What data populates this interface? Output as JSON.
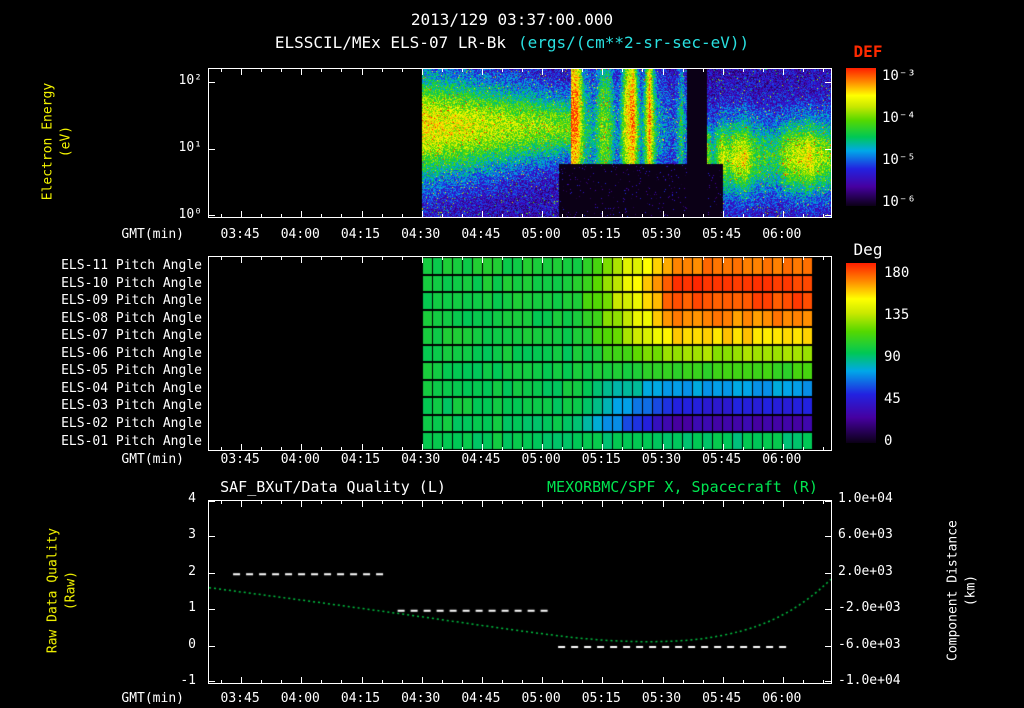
{
  "header": {
    "timestamp": "2013/129 03:37:00.000",
    "instrument": "ELSSCIL/MEx ELS-07 LR-Bk",
    "units": "(ergs/(cm**2-sr-sec-eV))"
  },
  "colors": {
    "background": "#000000",
    "text": "#ffffff",
    "units_text": "#29e0e0",
    "yellow_label": "#f5f500",
    "def_label": "#ff2a00",
    "green_title": "#00e550",
    "green_series": "#00c040",
    "palette": [
      [
        0,
        "#0b0016"
      ],
      [
        0.14,
        "#4600a0"
      ],
      [
        0.27,
        "#2222e0"
      ],
      [
        0.4,
        "#00a8e8"
      ],
      [
        0.5,
        "#00c855"
      ],
      [
        0.62,
        "#55d800"
      ],
      [
        0.72,
        "#c8e800"
      ],
      [
        0.8,
        "#ffff00"
      ],
      [
        0.9,
        "#ff8800"
      ],
      [
        1,
        "#ff1e00"
      ]
    ]
  },
  "time_axis": {
    "label": "GMT(min)",
    "start_min": 217,
    "end_min": 372,
    "tick_labels": [
      "03:45",
      "04:00",
      "04:15",
      "04:30",
      "04:45",
      "05:00",
      "05:15",
      "05:30",
      "05:45",
      "06:00"
    ],
    "tick_minutes": [
      225,
      240,
      255,
      270,
      285,
      300,
      315,
      330,
      345,
      360
    ]
  },
  "chart_data": {
    "spectrogram": {
      "type": "heatmap",
      "ylabel_line1": "Electron Energy",
      "ylabel_line2": "(eV)",
      "ytick_labels": [
        "10²",
        "10¹",
        "10⁰"
      ],
      "ytick_exponents": [
        2,
        1,
        0
      ],
      "log_energy_range": [
        0,
        2.2
      ],
      "value_range_exponents": [
        -6.3,
        -3.2
      ],
      "data_start_min": 270,
      "data_end_min": 372,
      "colorbar": {
        "title": "DEF",
        "tick_labels": [
          "10⁻³",
          "10⁻⁴",
          "10⁻⁵",
          "10⁻⁶"
        ]
      },
      "features": {
        "background_level": -6.15,
        "noise_amp": 0.85,
        "main_band": {
          "t0": 270,
          "t1": 307,
          "center_log": 1.35,
          "amp0": 1.9,
          "amp1": 1.35
        },
        "patchy_band": {
          "t0": 307,
          "t1": 336,
          "center_log": 1.3,
          "sigma": 0.5,
          "amp": 1.55
        },
        "gap": {
          "t0": 336,
          "t1": 341
        },
        "late_band": {
          "t0": 341,
          "t1": 372,
          "center_log": 0.9,
          "sigma": 0.4,
          "amp": 1.55
        },
        "dark_low": {
          "t0": 304,
          "t1": 345,
          "below_log": 0.8
        }
      }
    },
    "pitch_angles": {
      "type": "heatmap",
      "deg_range": [
        0,
        180
      ],
      "data_start_min": 270,
      "data_end_min": 367,
      "transition_start_min": 308,
      "transition_end_min": 333,
      "colorbar": {
        "title": "Deg",
        "tick_labels": [
          "180",
          "135",
          "90",
          "45",
          "0"
        ]
      },
      "rows": [
        {
          "label": "ELS-11 Pitch Angle",
          "start_deg": 96,
          "end_deg": 165
        },
        {
          "label": "ELS-10 Pitch Angle",
          "start_deg": 95,
          "end_deg": 176
        },
        {
          "label": "ELS-09 Pitch Angle",
          "start_deg": 95,
          "end_deg": 172
        },
        {
          "label": "ELS-08 Pitch Angle",
          "start_deg": 94,
          "end_deg": 162
        },
        {
          "label": "ELS-07 Pitch Angle",
          "start_deg": 94,
          "end_deg": 150
        },
        {
          "label": "ELS-06 Pitch Angle",
          "start_deg": 93,
          "end_deg": 122
        },
        {
          "label": "ELS-05 Pitch Angle",
          "start_deg": 93,
          "end_deg": 104
        },
        {
          "label": "ELS-04 Pitch Angle",
          "start_deg": 92,
          "end_deg": 70
        },
        {
          "label": "ELS-03 Pitch Angle",
          "start_deg": 92,
          "end_deg": 45
        },
        {
          "label": "ELS-02 Pitch Angle",
          "start_deg": 91,
          "end_deg": 28
        },
        {
          "label": "ELS-01 Pitch Angle",
          "start_deg": 91,
          "end_deg": 88
        }
      ]
    },
    "timeseries": {
      "type": "line",
      "left_title": "SAF_BXuT/Data Quality (L)",
      "right_title": "MEXORBMC/SPF X, Spacecraft (R)",
      "left_ylabel_line1": "Raw Data Quality",
      "left_ylabel_line2": "(Raw)",
      "right_ylabel_line1": "Component Distance",
      "right_ylabel_line2": "(km)",
      "left_ticks": [
        "4",
        "3",
        "2",
        "1",
        "0",
        "-1"
      ],
      "left_range": [
        -1,
        4
      ],
      "right_ticks": [
        "1.0e+04",
        "6.0e+03",
        "2.0e+03",
        "-2.0e+03",
        "-6.0e+03",
        "-1.0e+04"
      ],
      "right_range": [
        -10000,
        10000
      ],
      "quality_segments": [
        {
          "start_min": 223,
          "end_min": 261,
          "value": 2
        },
        {
          "start_min": 264,
          "end_min": 302,
          "value": 1
        },
        {
          "start_min": 304,
          "end_min": 362,
          "value": 0
        }
      ],
      "x_km_points": [
        [
          217,
          480
        ],
        [
          225,
          0
        ],
        [
          240,
          -880
        ],
        [
          255,
          -1800
        ],
        [
          270,
          -2720
        ],
        [
          285,
          -3680
        ],
        [
          300,
          -4600
        ],
        [
          310,
          -5120
        ],
        [
          320,
          -5440
        ],
        [
          330,
          -5480
        ],
        [
          340,
          -5200
        ],
        [
          350,
          -4320
        ],
        [
          357,
          -3200
        ],
        [
          363,
          -1800
        ],
        [
          368,
          -200
        ],
        [
          372,
          1400
        ]
      ]
    }
  }
}
